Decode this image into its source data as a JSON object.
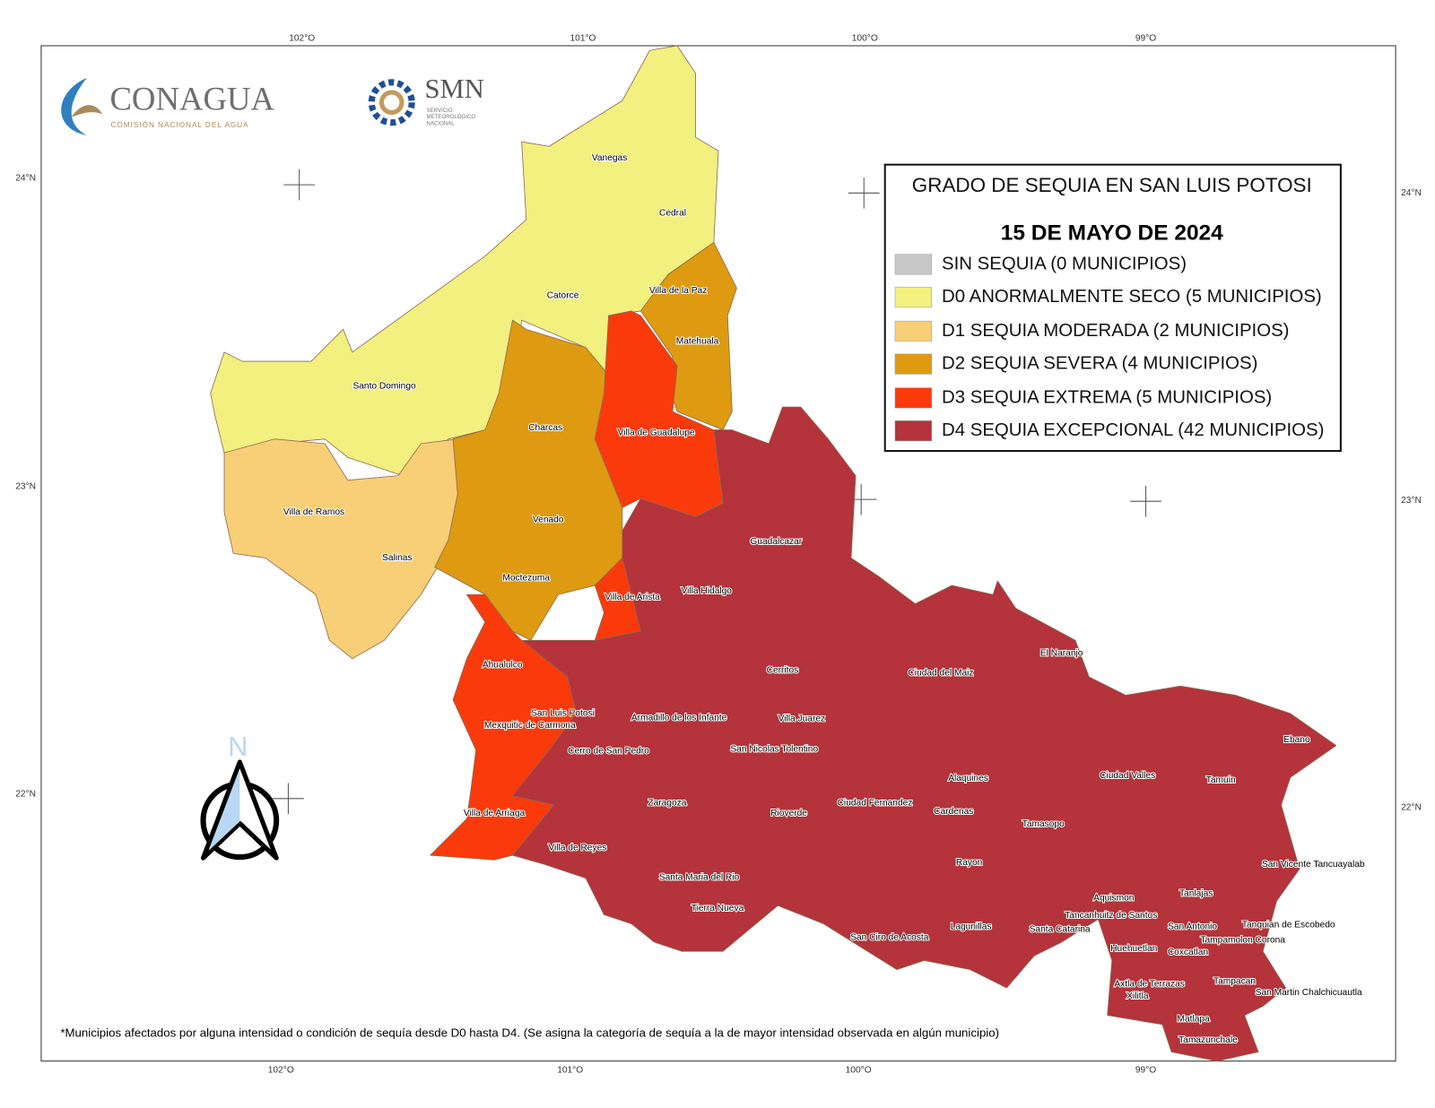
{
  "logos": {
    "conagua": "CONAGUA",
    "conagua_sub": "COMISIÓN NACIONAL DEL AGUA",
    "smn": "SMN",
    "smn_sub": [
      "SERVICIO",
      "METEOROLÓGICO",
      "NACIONAL"
    ]
  },
  "coordinates": {
    "longitudes": [
      "102°O",
      "101°O",
      "100°O",
      "99°O"
    ],
    "latitudes": [
      "24°N",
      "23°N",
      "22°N"
    ]
  },
  "legend": {
    "title": "GRADO DE SEQUIA EN SAN LUIS POTOSI",
    "date": "15 DE MAYO DE 2024",
    "items": [
      {
        "label": "SIN SEQUIA  (0 MUNICIPIOS)",
        "color": "#c8c8c8"
      },
      {
        "label": "D0  ANORMALMENTE SECO  (5 MUNICIPIOS)",
        "color": "#f2f07e"
      },
      {
        "label": "D1  SEQUIA MODERADA  (2 MUNICIPIOS)",
        "color": "#f8cf77"
      },
      {
        "label": "D2  SEQUIA SEVERA  (4 MUNICIPIOS)",
        "color": "#de9a10"
      },
      {
        "label": "D3  SEQUIA EXTREMA  (5 MUNICIPIOS)",
        "color": "#fb3a0b"
      },
      {
        "label": "D4  SEQUIA EXCEPCIONAL (42 MUNICIPIOS)",
        "color": "#b5333a"
      }
    ]
  },
  "municipalities": [
    "Vanegas",
    "Cedral",
    "Catorce",
    "Villa de la Paz",
    "Matehuala",
    "Santo Domingo",
    "Charcas",
    "Villa de Guadalupe",
    "Villa de Ramos",
    "Venado",
    "Salinas",
    "Guadalcazar",
    "Moctezuma",
    "Villa de Arista",
    "Villa Hidalgo",
    "El Naranjo",
    "Ahualulco",
    "Cerritos",
    "Ciudad del Maiz",
    "San Luis Potosi",
    "Armadillo de los Infante",
    "Villa Juarez",
    "Mexquitic de Carmona",
    "Ebano",
    "Cerro de San Pedro",
    "San Nicolas Tolentino",
    "Ciudad Valles",
    "Alaquines",
    "Tamuin",
    "Zaragoza",
    "Ciudad Fernandez",
    "Villa de Arriaga",
    "Rioverde",
    "Cardenas",
    "Tamasopo",
    "Villa de Reyes",
    "Rayon",
    "San Vicente Tancuayalab",
    "Santa Maria del Rio",
    "Tanlajas",
    "Aquismon",
    "Tierra Nueva",
    "Tancanhuitz de Santos",
    "Tanquian de Escobedo",
    "Lagunillas",
    "San Antonio",
    "Santa Catarina",
    "San Ciro de Acosta",
    "Tampamolon Corona",
    "Huehuetlan",
    "Coxcatlan",
    "Tampacan",
    "Axtla de Terrazas",
    "San Martin Chalchicuautla",
    "Xilitla",
    "Matlapa",
    "Tamazunchale"
  ],
  "north": "N",
  "footnote": "*Municipios afectados por alguna intensidad o condición de sequía desde D0 hasta D4. (Se asigna la categoría de sequía a la de mayor intensidad observada en algún municipio)"
}
